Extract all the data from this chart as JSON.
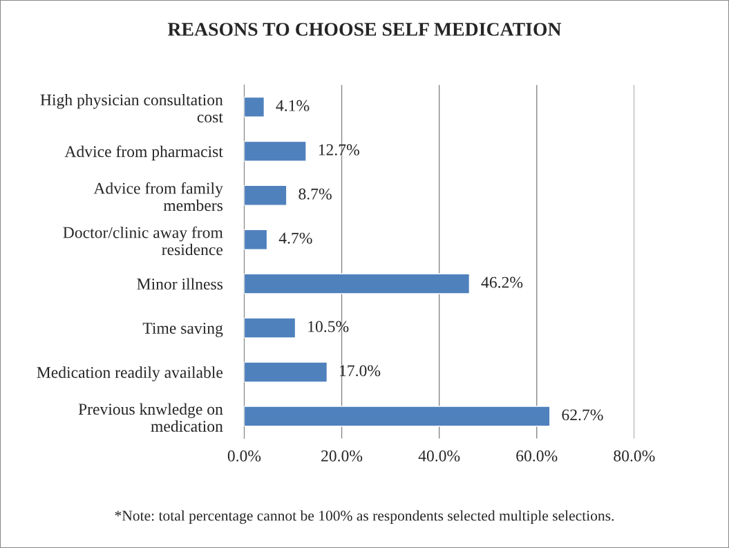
{
  "chart_data": {
    "type": "bar",
    "orientation": "horizontal",
    "title": "REASONS TO CHOOSE SELF MEDICATION",
    "categories": [
      "High physician consultation\ncost",
      "Advice from pharmacist",
      "Advice from family\nmembers",
      "Doctor/clinic away from\nresidence",
      "Minor illness",
      "Time saving",
      "Medication readily available",
      "Previous knwledge on\nmedication"
    ],
    "values": [
      4.1,
      12.7,
      8.7,
      4.7,
      46.2,
      10.5,
      17.0,
      62.7
    ],
    "value_labels": [
      "4.1%",
      "12.7%",
      "8.7%",
      "4.7%",
      "46.2%",
      "10.5%",
      "17.0%",
      "62.7%"
    ],
    "color": "#4f81bd",
    "xlim": [
      0,
      80
    ],
    "xticks": [
      {
        "value": 0,
        "label": "0.0%"
      },
      {
        "value": 20,
        "label": "20.0%"
      },
      {
        "value": 40,
        "label": "40.0%"
      },
      {
        "value": 60,
        "label": "60.0%"
      },
      {
        "value": 80,
        "label": "80.0%"
      }
    ],
    "grid": "x",
    "legend": false,
    "annotations": [
      "*Note: total percentage cannot be 100% as respondents selected multiple selections."
    ]
  }
}
